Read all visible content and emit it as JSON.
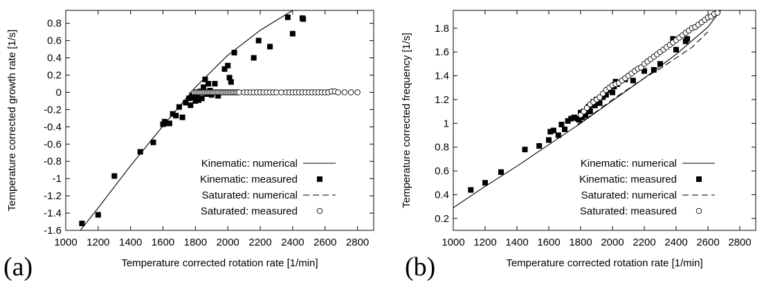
{
  "chart_data": [
    {
      "type": "scatter",
      "panel_label": "(a)",
      "xlabel": "Temperature corrected rotation rate  [1/min]",
      "ylabel": "Temperature corrected growth rate  [1/s]",
      "xlim": [
        1000,
        2900
      ],
      "ylim": [
        -1.6,
        0.95
      ],
      "xticks": [
        1000,
        1200,
        1400,
        1600,
        1800,
        2000,
        2200,
        2400,
        2600,
        2800
      ],
      "yticks": [
        -1.6,
        -1.4,
        -1.2,
        -1,
        -0.8,
        -0.6,
        -0.4,
        -0.2,
        0,
        0.2,
        0.4,
        0.6,
        0.8
      ],
      "xtick_labels": [
        "1000",
        "1200",
        "1400",
        "1600",
        "1800",
        "2000",
        "2200",
        "2400",
        "2600",
        "2800"
      ],
      "ytick_labels": [
        "-1.6",
        "-1.4",
        "-1.2",
        "-1",
        "-0.8",
        "-0.6",
        "-0.4",
        "-0.2",
        "0",
        "0.2",
        "0.4",
        "0.6",
        "0.8"
      ],
      "legend_position": "bottom-right",
      "series": [
        {
          "name": "Kinematic: numerical",
          "style": "solid-line",
          "x": [
            1090,
            1200,
            1400,
            1600,
            1800,
            2000,
            2200,
            2400,
            2500
          ],
          "y": [
            -1.6,
            -1.34,
            -0.85,
            -0.39,
            0.06,
            0.43,
            0.72,
            0.95,
            1.04
          ]
        },
        {
          "name": "Kinematic: measured",
          "style": "filled-square",
          "x": [
            1100,
            1200,
            1300,
            1460,
            1540,
            1600,
            1610,
            1620,
            1640,
            1660,
            1680,
            1700,
            1720,
            1740,
            1760,
            1770,
            1780,
            1790,
            1800,
            1810,
            1820,
            1830,
            1840,
            1850,
            1860,
            1870,
            1880,
            1890,
            1900,
            1910,
            1920,
            1940,
            1960,
            1980,
            2000,
            2010,
            2020,
            2040,
            2160,
            2190,
            2260,
            2370,
            2400,
            2460,
            2465
          ],
          "y": [
            -1.52,
            -1.42,
            -0.97,
            -0.69,
            -0.58,
            -0.37,
            -0.34,
            -0.36,
            -0.36,
            -0.25,
            -0.27,
            -0.17,
            -0.29,
            -0.12,
            -0.07,
            -0.15,
            -0.03,
            -0.06,
            -0.1,
            -0.05,
            -0.09,
            0.01,
            -0.07,
            0.06,
            0.15,
            -0.02,
            0.1,
            0.02,
            -0.03,
            0.0,
            0.1,
            -0.04,
            0.0,
            0.27,
            0.31,
            0.17,
            0.12,
            0.46,
            0.4,
            0.6,
            0.53,
            0.87,
            0.68,
            0.86,
            0.85
          ]
        },
        {
          "name": "Saturated: numerical",
          "style": "dashed-line",
          "x": [],
          "y": []
        },
        {
          "name": "Saturated: measured",
          "style": "open-circle",
          "x": [
            1790,
            1800,
            1810,
            1820,
            1830,
            1840,
            1850,
            1860,
            1870,
            1880,
            1890,
            1900,
            1910,
            1920,
            1930,
            1940,
            1950,
            1960,
            1970,
            1980,
            1990,
            2000,
            2010,
            2020,
            2030,
            2040,
            2050,
            2060,
            2070,
            2100,
            2120,
            2140,
            2160,
            2180,
            2200,
            2220,
            2240,
            2260,
            2280,
            2300,
            2330,
            2360,
            2380,
            2400,
            2420,
            2440,
            2460,
            2480,
            2500,
            2520,
            2540,
            2560,
            2580,
            2600,
            2620,
            2640,
            2660,
            2680,
            2720,
            2760,
            2800
          ],
          "y": [
            0,
            0,
            0,
            0,
            0,
            0,
            0,
            0,
            0,
            0,
            0,
            0,
            0,
            0,
            0,
            0,
            0,
            0,
            0,
            0,
            0,
            0,
            0,
            0,
            0,
            0,
            0,
            0,
            0,
            0,
            0,
            0,
            0,
            0,
            0,
            0,
            0,
            0,
            0,
            0,
            0,
            0,
            0,
            0,
            0,
            0,
            0,
            0,
            0,
            0,
            0,
            0,
            0,
            0,
            0,
            0.01,
            0.01,
            0,
            0,
            0,
            0
          ]
        }
      ]
    },
    {
      "type": "scatter",
      "panel_label": "(b)",
      "xlabel": "Temperature corrected rotation rate  [1/min]",
      "ylabel": "Temperature corrected frequency  [1/s]",
      "xlim": [
        1000,
        2900
      ],
      "ylim": [
        0.1,
        1.95
      ],
      "xticks": [
        1000,
        1200,
        1400,
        1600,
        1800,
        2000,
        2200,
        2400,
        2600,
        2800
      ],
      "yticks": [
        0.2,
        0.4,
        0.6,
        0.8,
        1,
        1.2,
        1.4,
        1.6,
        1.8
      ],
      "xtick_labels": [
        "1000",
        "1200",
        "1400",
        "1600",
        "1800",
        "2000",
        "2200",
        "2400",
        "2600",
        "2800"
      ],
      "ytick_labels": [
        "0.2",
        "0.4",
        "0.6",
        "0.8",
        "1",
        "1.2",
        "1.4",
        "1.6",
        "1.8"
      ],
      "legend_position": "bottom-right",
      "series": [
        {
          "name": "Kinematic: numerical",
          "style": "solid-line",
          "x": [
            1000,
            1200,
            1400,
            1600,
            1800,
            2000,
            2200,
            2400,
            2600,
            2680
          ],
          "y": [
            0.29,
            0.47,
            0.64,
            0.82,
            1.0,
            1.19,
            1.38,
            1.58,
            1.81,
            1.95
          ]
        },
        {
          "name": "Kinematic: measured",
          "style": "filled-square",
          "x": [
            1110,
            1200,
            1300,
            1450,
            1540,
            1600,
            1610,
            1630,
            1660,
            1680,
            1700,
            1720,
            1740,
            1760,
            1780,
            1790,
            1800,
            1810,
            1820,
            1830,
            1840,
            1850,
            1860,
            1870,
            1880,
            1890,
            1900,
            1920,
            1940,
            1960,
            1980,
            2000,
            2010,
            2020,
            2030,
            2080,
            2130,
            2200,
            2260,
            2300,
            2380,
            2400,
            2460,
            2470
          ],
          "y": [
            0.44,
            0.5,
            0.59,
            0.78,
            0.81,
            0.86,
            0.93,
            0.94,
            0.9,
            0.99,
            0.95,
            1.02,
            1.04,
            1.05,
            1.04,
            1.03,
            1.09,
            1.05,
            1.1,
            1.07,
            1.12,
            1.14,
            1.1,
            1.15,
            1.18,
            1.15,
            1.2,
            1.17,
            1.22,
            1.24,
            1.28,
            1.26,
            1.31,
            1.35,
            1.33,
            1.37,
            1.36,
            1.44,
            1.45,
            1.5,
            1.71,
            1.62,
            1.69,
            1.71
          ]
        },
        {
          "name": "Saturated: numerical",
          "style": "dashed-line",
          "x": [
            1780,
            1900,
            2000,
            2100,
            2200,
            2300,
            2400,
            2500,
            2600
          ],
          "y": [
            0.99,
            1.1,
            1.2,
            1.29,
            1.38,
            1.46,
            1.55,
            1.64,
            1.77
          ]
        },
        {
          "name": "Saturated: measured",
          "style": "open-circle",
          "x": [
            1800,
            1820,
            1840,
            1860,
            1880,
            1900,
            1920,
            1940,
            1960,
            1980,
            2000,
            2020,
            2040,
            2060,
            2080,
            2100,
            2120,
            2140,
            2160,
            2180,
            2200,
            2220,
            2240,
            2260,
            2280,
            2300,
            2320,
            2340,
            2360,
            2380,
            2400,
            2420,
            2440,
            2460,
            2480,
            2500,
            2520,
            2540,
            2560,
            2580,
            2600,
            2620,
            2640,
            2660
          ],
          "y": [
            1.07,
            1.1,
            1.13,
            1.16,
            1.18,
            1.2,
            1.22,
            1.25,
            1.28,
            1.3,
            1.32,
            1.33,
            1.34,
            1.36,
            1.38,
            1.4,
            1.42,
            1.44,
            1.46,
            1.47,
            1.5,
            1.52,
            1.54,
            1.56,
            1.58,
            1.6,
            1.62,
            1.64,
            1.66,
            1.68,
            1.7,
            1.72,
            1.74,
            1.76,
            1.78,
            1.8,
            1.81,
            1.83,
            1.85,
            1.87,
            1.89,
            1.9,
            1.92,
            1.93
          ]
        }
      ]
    }
  ]
}
